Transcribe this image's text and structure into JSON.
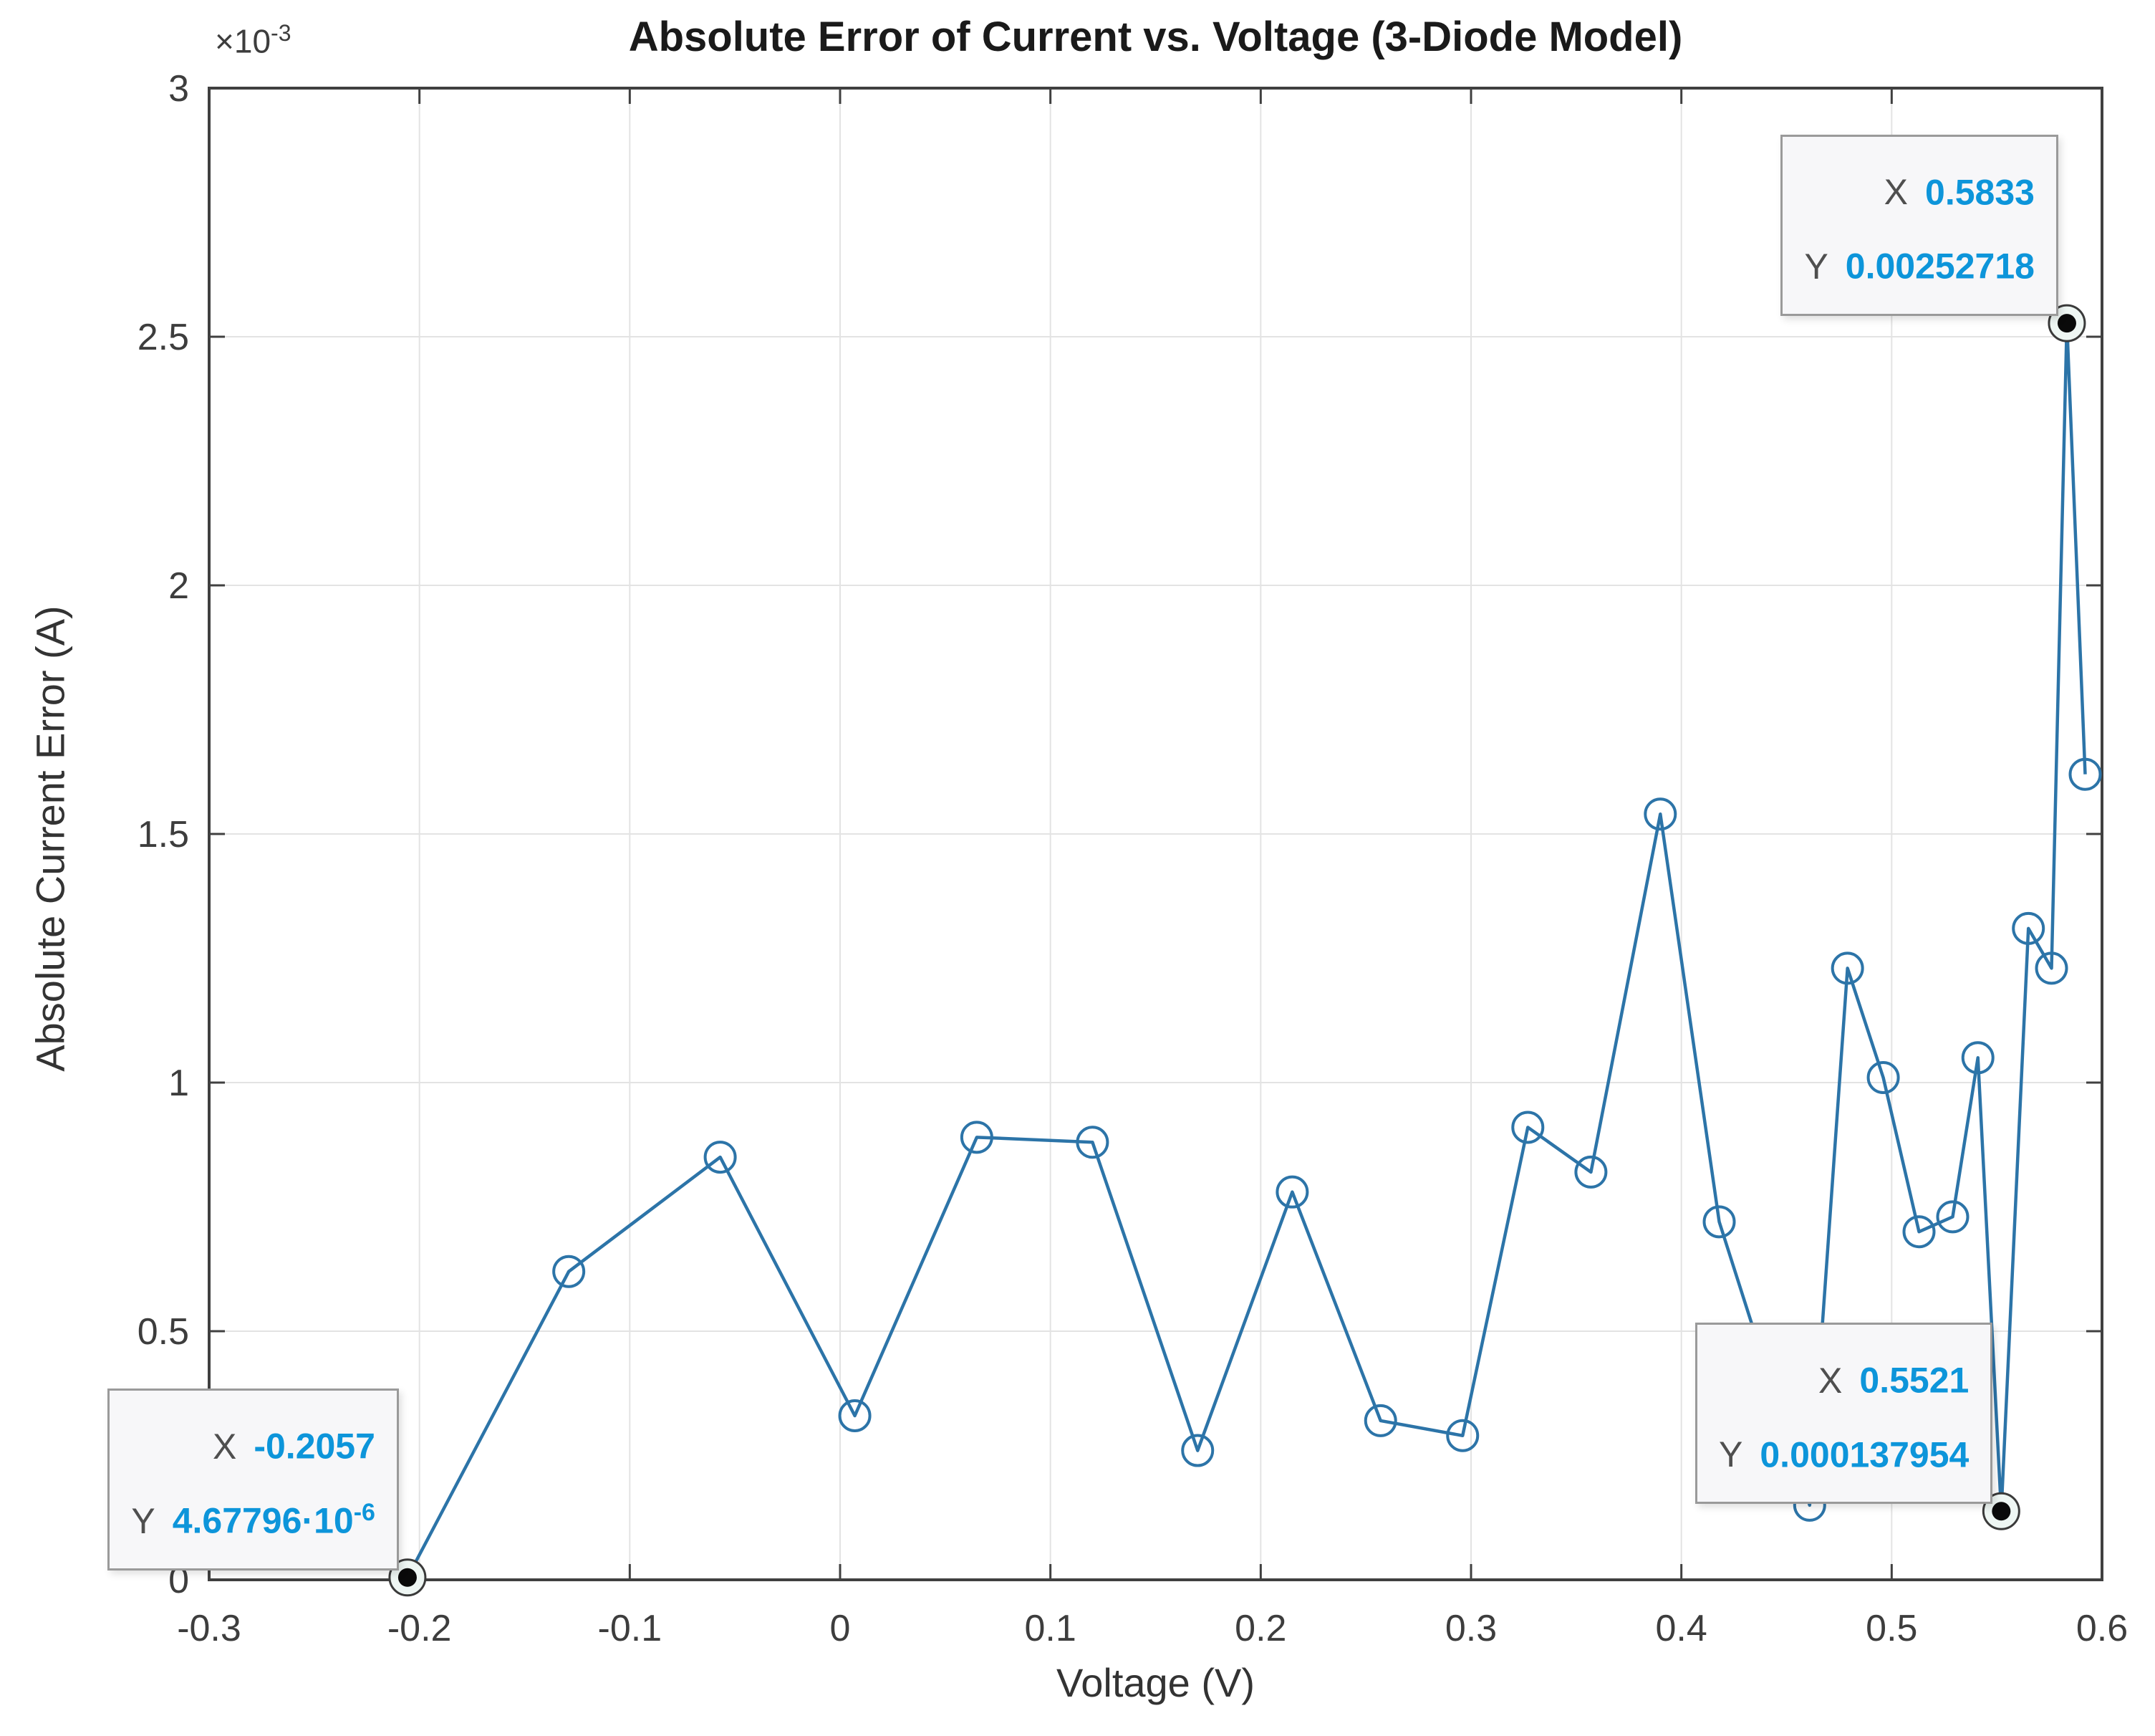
{
  "figure": {
    "background": "#ffffff"
  },
  "chart_data": {
    "type": "line",
    "title": "Absolute Error of Current vs. Voltage (3-Diode Model)",
    "xlabel": "Voltage (V)",
    "ylabel": "Absolute Current Error (A)",
    "y_offset_label": {
      "base": "×10",
      "exp": "-3"
    },
    "xlim": [
      -0.3,
      0.6
    ],
    "ylim": [
      0,
      0.003
    ],
    "grid": true,
    "legend": "none",
    "x_ticks": {
      "values": [
        -0.3,
        -0.2,
        -0.1,
        0,
        0.1,
        0.2,
        0.3,
        0.4,
        0.5,
        0.6
      ],
      "labels": [
        "-0.3",
        "-0.2",
        "-0.1",
        "0",
        "0.1",
        "0.2",
        "0.3",
        "0.4",
        "0.5",
        "0.6"
      ]
    },
    "y_ticks": {
      "values": [
        0,
        0.0005,
        0.001,
        0.0015,
        0.002,
        0.0025,
        0.003
      ],
      "labels": [
        "0",
        "0.5",
        "1",
        "1.5",
        "2",
        "2.5",
        "3"
      ]
    },
    "series": [
      {
        "name": "absolute-current-error",
        "marker": "open-circle",
        "x": [
          -0.2057,
          -0.129,
          -0.057,
          0.007,
          0.065,
          0.12,
          0.17,
          0.215,
          0.257,
          0.296,
          0.327,
          0.357,
          0.39,
          0.418,
          0.461,
          0.479,
          0.496,
          0.513,
          0.529,
          0.541,
          0.5521,
          0.565,
          0.576,
          0.5833,
          0.592
        ],
        "y": [
          4.67796e-06,
          0.00062,
          0.00085,
          0.00033,
          0.00089,
          0.00088,
          0.00026,
          0.00078,
          0.00032,
          0.00029,
          0.00091,
          0.00082,
          0.00154,
          0.00072,
          0.00015,
          0.00123,
          0.00101,
          0.0007,
          0.00073,
          0.00105,
          0.000137954,
          0.00131,
          0.00123,
          0.00252718,
          0.00162
        ]
      }
    ]
  },
  "datatips": [
    {
      "x_label": "X",
      "y_label": "Y",
      "x_value": "0.5833",
      "x_exp": "",
      "y_value": "0.00252718",
      "y_exp": "",
      "anchor_x": 0.5833,
      "anchor_y": 0.00252718
    },
    {
      "x_label": "X",
      "y_label": "Y",
      "x_value": "-0.2057",
      "x_exp": "",
      "y_value": "4.67796·10",
      "y_exp": "-6",
      "anchor_x": -0.2057,
      "anchor_y": 4.67796e-06
    },
    {
      "x_label": "X",
      "y_label": "Y",
      "x_value": "0.5521",
      "x_exp": "",
      "y_value": "0.000137954",
      "y_exp": "",
      "anchor_x": 0.5521,
      "anchor_y": 0.000137954
    }
  ],
  "colors": {
    "line": "#2c74a8",
    "marker": "#2c74a8",
    "grid": "#e3e3e3",
    "axis": "#404040",
    "tick_label": "#3d3d3d",
    "datatip_value": "#0d95da",
    "selected_marker_fill": "#0a0a0a",
    "selected_marker_ring": "#eef6f3"
  }
}
